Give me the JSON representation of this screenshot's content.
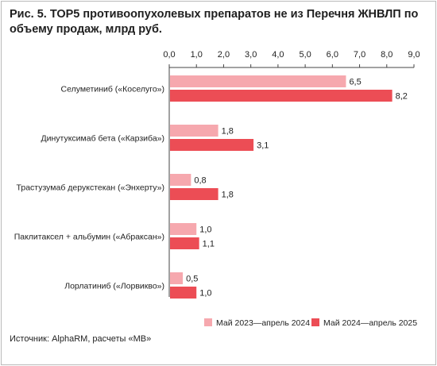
{
  "chart_data": {
    "type": "bar",
    "orientation": "horizontal",
    "title": "Рис. 5. ТОР5 противоопухолевых препаратов не из Перечня ЖНВЛП по объему продаж, млрд руб.",
    "categories": [
      "Селуметиниб («Коселуго»)",
      "Динутуксимаб бета («Карзиба»)",
      "Трастузумаб дерукстекан («Энхерту»)",
      "Паклитаксел + альбумин («Абраксан»)",
      "Лорлатиниб («Лорвикво»)"
    ],
    "series": [
      {
        "name": "Май 2023—апрель 2024",
        "color": "#f6a8ae",
        "values": [
          6.5,
          1.8,
          0.8,
          1.0,
          0.5
        ],
        "labels": [
          "6,5",
          "1,8",
          "0,8",
          "1,0",
          "0,5"
        ]
      },
      {
        "name": "Май 2024—апрель 2025",
        "color": "#ec4d55",
        "values": [
          8.2,
          3.1,
          1.8,
          1.1,
          1.0
        ],
        "labels": [
          "8,2",
          "3,1",
          "1,8",
          "1,1",
          "1,0"
        ]
      }
    ],
    "xlim": [
      0,
      9
    ],
    "xticks": [
      0,
      1,
      2,
      3,
      4,
      5,
      6,
      7,
      8,
      9
    ],
    "xtick_labels": [
      "0,0",
      "1,0",
      "2,0",
      "3,0",
      "4,0",
      "5,0",
      "6,0",
      "7,0",
      "8,0",
      "9,0"
    ],
    "axis_position": "top",
    "grid": false,
    "legend": "bottom-right"
  },
  "source": "Источник: AlphaRM, расчеты «МВ»"
}
